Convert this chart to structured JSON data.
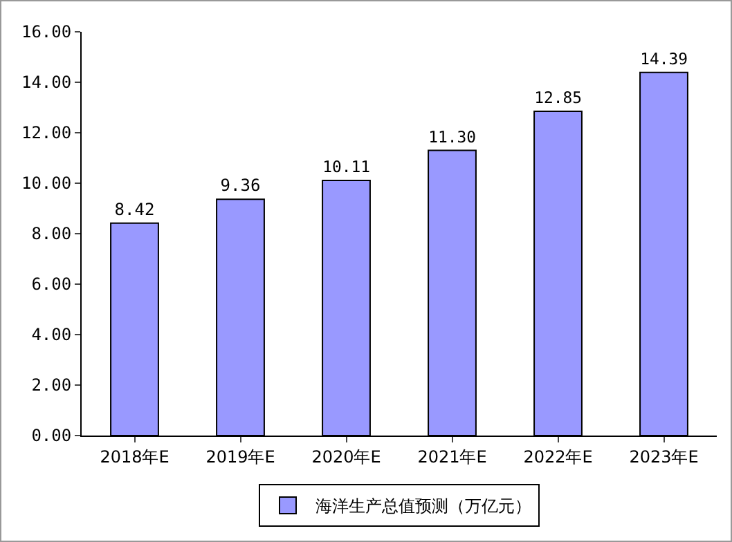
{
  "chart_data": {
    "type": "bar",
    "categories": [
      "2018年E",
      "2019年E",
      "2020年E",
      "2021年E",
      "2022年E",
      "2023年E"
    ],
    "series": [
      {
        "name": "海洋生产总值预测（万亿元）",
        "color": "#9999ff",
        "values": [
          8.42,
          9.36,
          10.11,
          11.3,
          12.85,
          14.39
        ],
        "value_labels": [
          "8.42",
          "9.36",
          "10.11",
          "11.30",
          "12.85",
          "14.39"
        ]
      }
    ],
    "ylim": [
      0,
      16
    ],
    "yticks": [
      {
        "value": 0,
        "label": "0.00"
      },
      {
        "value": 2,
        "label": "2.00"
      },
      {
        "value": 4,
        "label": "4.00"
      },
      {
        "value": 6,
        "label": "6.00"
      },
      {
        "value": 8,
        "label": "8.00"
      },
      {
        "value": 10,
        "label": "10.00"
      },
      {
        "value": 12,
        "label": "12.00"
      },
      {
        "value": 14,
        "label": "14.00"
      },
      {
        "value": 16,
        "label": "16.00"
      }
    ],
    "grid": false,
    "legend": "bottom"
  }
}
